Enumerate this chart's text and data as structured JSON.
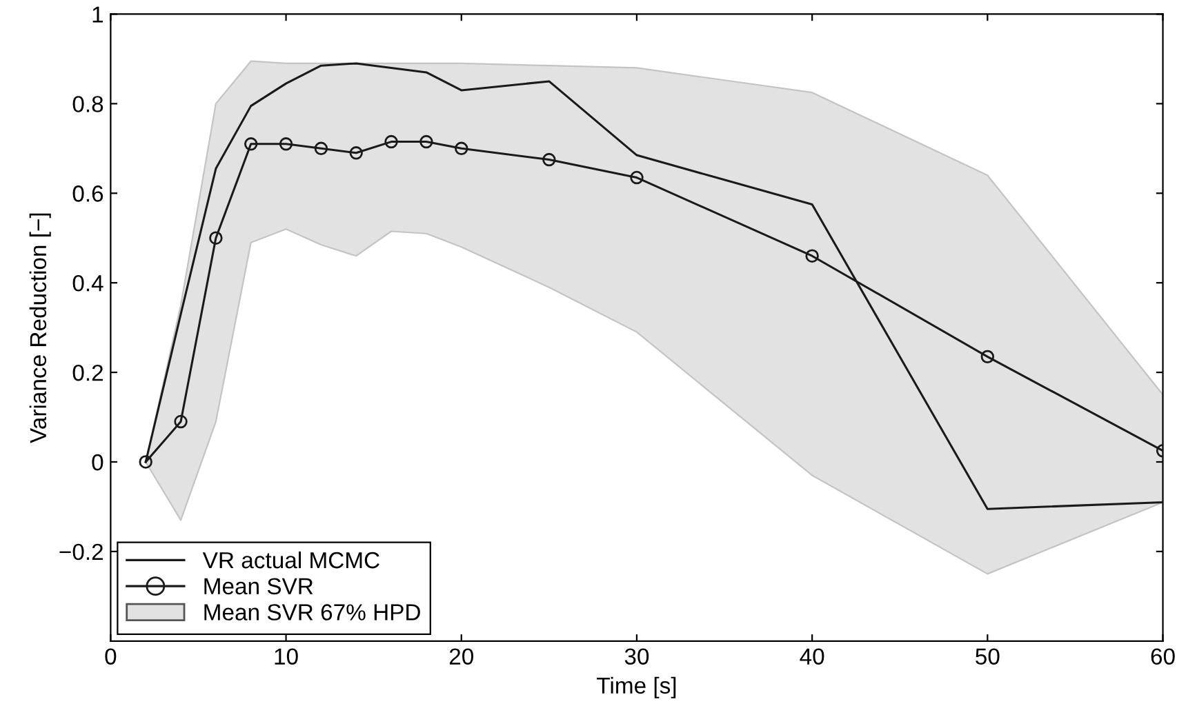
{
  "chart_data": {
    "type": "line",
    "xlabel": "Time [s]",
    "ylabel": "Variance Reduction [−]",
    "x": [
      2,
      4,
      6,
      8,
      10,
      12,
      14,
      16,
      18,
      20,
      25,
      30,
      40,
      50,
      60
    ],
    "series": [
      {
        "name": "VR actual MCMC",
        "color": "#1a1a1a",
        "marker": "none",
        "values": [
          0,
          0.33,
          0.655,
          0.795,
          0.845,
          0.885,
          0.89,
          0.88,
          0.87,
          0.83,
          0.85,
          0.685,
          0.575,
          -0.105,
          -0.09
        ]
      },
      {
        "name": "Mean SVR",
        "color": "#1a1a1a",
        "marker": "circle",
        "values": [
          0,
          0.09,
          0.5,
          0.71,
          0.71,
          0.7,
          0.69,
          0.715,
          0.715,
          0.7,
          0.675,
          0.635,
          0.46,
          0.235,
          0.025
        ]
      },
      {
        "name": "Mean SVR 67% HPD",
        "type": "area",
        "color": "#e2e2e2",
        "lower": [
          0,
          -0.13,
          0.09,
          0.49,
          0.52,
          0.485,
          0.46,
          0.515,
          0.51,
          0.48,
          0.39,
          0.29,
          -0.03,
          -0.25,
          -0.09
        ],
        "upper": [
          0,
          0.35,
          0.8,
          0.895,
          0.89,
          0.89,
          0.89,
          0.89,
          0.89,
          0.89,
          0.885,
          0.88,
          0.825,
          0.64,
          0.15
        ],
        "values": [
          null,
          null,
          null,
          null,
          null,
          null,
          null,
          null,
          null,
          null,
          null,
          null,
          null,
          null,
          null
        ]
      }
    ],
    "xlim": [
      0,
      60
    ],
    "xticks": [
      0,
      10,
      20,
      30,
      40,
      50,
      60
    ],
    "ylim": [
      -0.4,
      1
    ],
    "yticks": [
      {
        "value": -0.2,
        "label": "−0.2"
      },
      0,
      0.2,
      0.4,
      0.6,
      0.8,
      1
    ],
    "grid": false,
    "legend": "bottom left"
  }
}
